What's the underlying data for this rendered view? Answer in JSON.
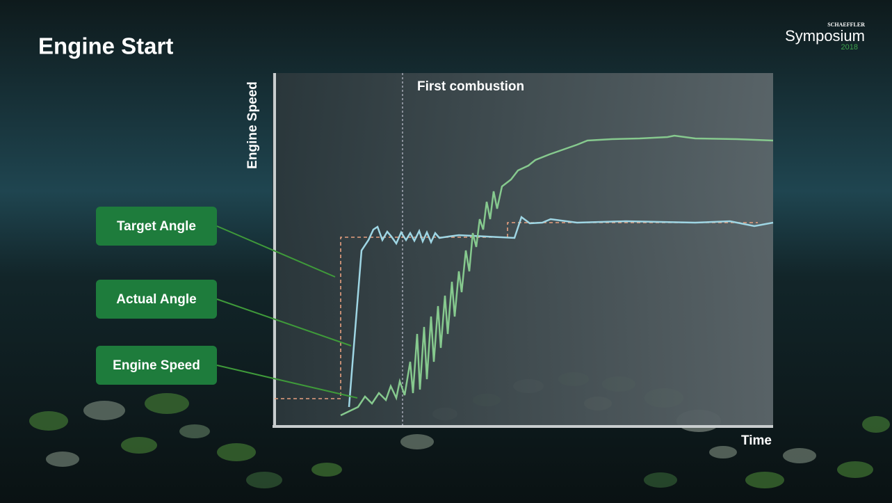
{
  "header": {
    "title": "Engine Start",
    "brand": "SCHAEFFLER",
    "event": "Symposium",
    "year": "2018"
  },
  "chart": {
    "y_axis_label": "Engine Speed",
    "x_axis_label": "Time",
    "annotation": "First combustion"
  },
  "callouts": [
    {
      "label": "Target Angle"
    },
    {
      "label": "Actual Angle"
    },
    {
      "label": "Engine Speed"
    }
  ]
}
